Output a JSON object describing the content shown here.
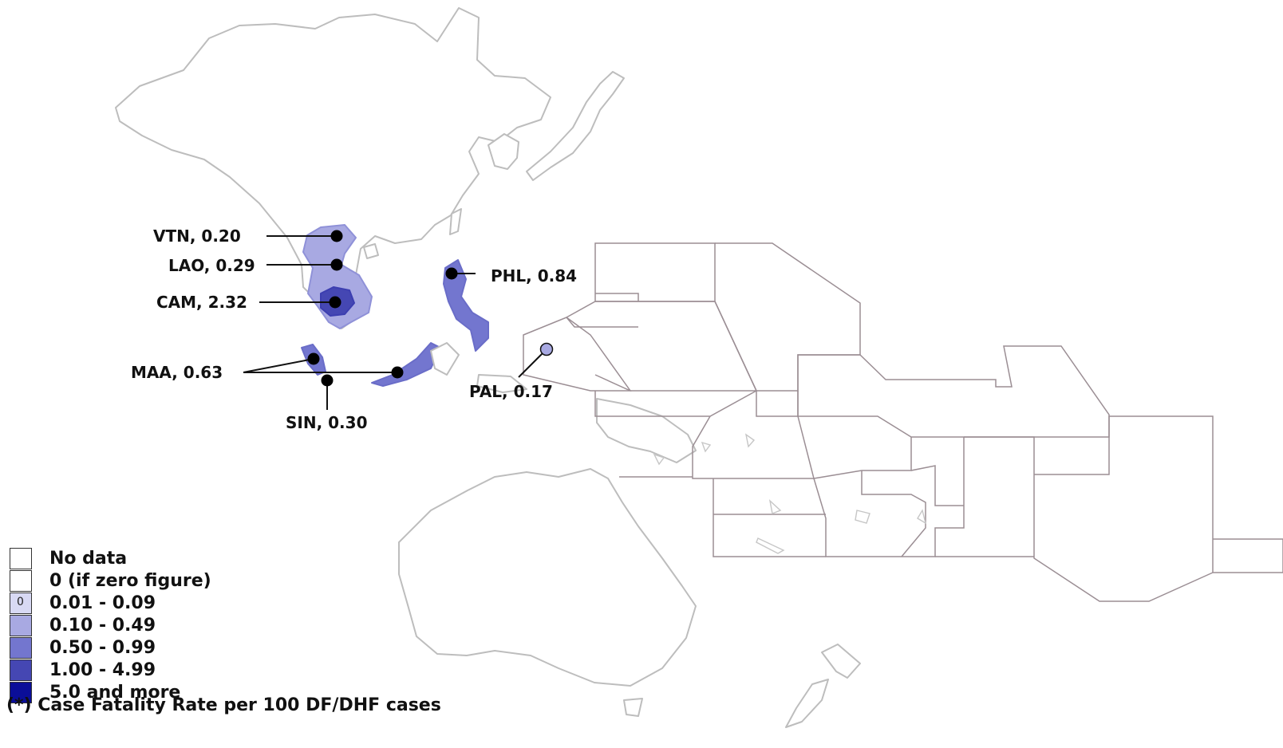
{
  "map": {
    "countries": [
      {
        "code": "VTN",
        "value": "0.20",
        "text": "VTN, 0.20",
        "color": "#a8a9e2"
      },
      {
        "code": "LAO",
        "value": "0.29",
        "text": "LAO, 0.29",
        "color": "#a8a9e2"
      },
      {
        "code": "CAM",
        "value": "2.32",
        "text": "CAM, 2.32",
        "color": "#4547b3"
      },
      {
        "code": "PHL",
        "value": "0.84",
        "text": "PHL, 0.84",
        "color": "#7376cf"
      },
      {
        "code": "MAA",
        "value": "0.63",
        "text": "MAA, 0.63",
        "color": "#7376cf"
      },
      {
        "code": "SIN",
        "value": "0.30",
        "text": "SIN, 0.30",
        "color": "#a8a9e2"
      },
      {
        "code": "PAL",
        "value": "0.17",
        "text": "PAL, 0.17",
        "color": "#a8a9e2"
      }
    ]
  },
  "legend": {
    "items": [
      {
        "label": "No data",
        "color": "#ffffff",
        "mark": ""
      },
      {
        "label": "0 (if zero figure)",
        "color": "#ffffff",
        "mark": ""
      },
      {
        "label": "0.01 - 0.09",
        "color": "#d8d9f4",
        "mark": "0"
      },
      {
        "label": "0.10 - 0.49",
        "color": "#a8a9e2",
        "mark": ""
      },
      {
        "label": "0.50 - 0.99",
        "color": "#7376cf",
        "mark": ""
      },
      {
        "label": "1.00 - 4.99",
        "color": "#4547b3",
        "mark": ""
      },
      {
        "label": "5.0 and more",
        "color": "#0b0e98",
        "mark": ""
      }
    ]
  },
  "footnote": "(*) Case Fatality Rate per 100 DF/DHF cases"
}
